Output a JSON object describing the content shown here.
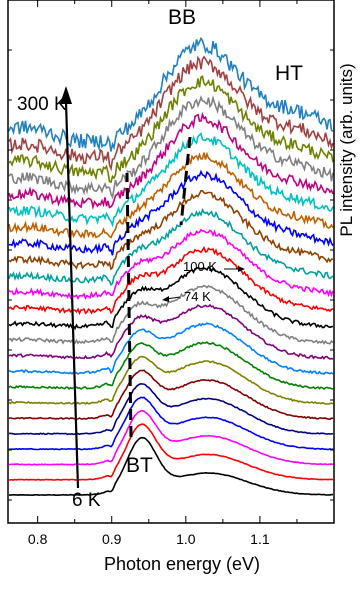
{
  "chart_data": {
    "type": "line",
    "title": "",
    "xlabel": "Photon energy (eV)",
    "ylabel": "PL intensity (arb. units)",
    "xlim": [
      0.76,
      1.2
    ],
    "x_ticks": [
      0.8,
      0.9,
      1.0,
      1.1
    ],
    "x_tick_labels": [
      "0.8",
      "0.9",
      "1.0",
      "1.1"
    ],
    "y_ticks_labeled": false,
    "grid": false,
    "legend": "none",
    "stacked_offset": true,
    "series_count": 24,
    "temperature_range": [
      "6 K",
      "300 K"
    ],
    "colors": [
      "#000000",
      "#ff0000",
      "#ff00ff",
      "#0000ff",
      "#000080",
      "#800000",
      "#808000",
      "#008000",
      "#0080ff",
      "#800080",
      "#808080",
      "#000000",
      "#ff0000",
      "#ff00ff",
      "#00a0a0",
      "#904000",
      "#0000ff",
      "#c06000",
      "#00c0c0",
      "#c00080",
      "#808080",
      "#708000",
      "#a04040",
      "#2080c0"
    ],
    "annotations": {
      "label_300K": "300 K",
      "label_6K": "6 K",
      "label_BB": "BB",
      "label_HT": "HT",
      "label_BT": "BT",
      "label_100K": "100 K",
      "label_74K": "74 K"
    },
    "peaks": {
      "BT_peak_energy_eV": 0.94,
      "BB_peak_energy_eV": 1.03
    }
  }
}
